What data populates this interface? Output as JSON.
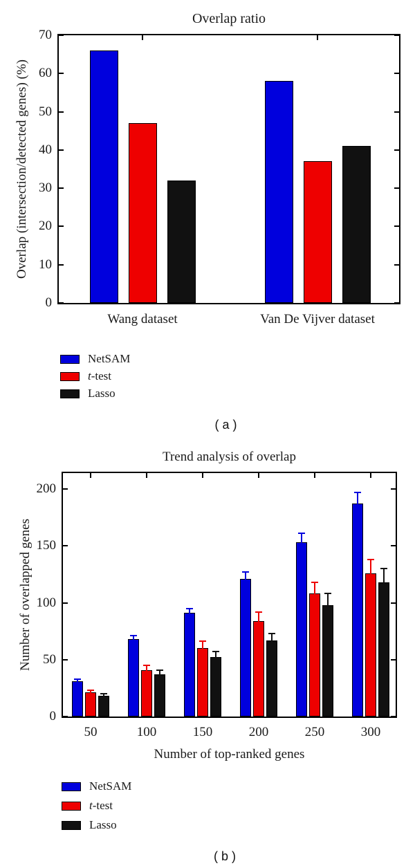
{
  "page": {
    "background": "#ffffff",
    "frame_color": "#000000",
    "text_color": "#1a1a1a"
  },
  "captions": {
    "a": "( a )",
    "b": "( b )"
  },
  "chart_data": [
    {
      "type": "bar",
      "panel": "a",
      "title": "Overlap ratio",
      "ylabel": "Overlap (intersection/detected genes) (%)",
      "xlabel": "",
      "categories": [
        "Wang dataset",
        "Van De Vijver dataset"
      ],
      "yticks": [
        0,
        10,
        20,
        30,
        40,
        50,
        60,
        70
      ],
      "ylim": [
        0,
        70
      ],
      "grid": false,
      "legend_position": "below-left",
      "bar_edge_color": "#000000",
      "series": [
        {
          "name": "NetSAM",
          "color": "#0000dd",
          "values": [
            66,
            58
          ]
        },
        {
          "name": "t-test",
          "italic_prefix_len": 1,
          "color": "#ee0000",
          "values": [
            47,
            37
          ]
        },
        {
          "name": "Lasso",
          "color": "#111111",
          "values": [
            32,
            41
          ]
        }
      ]
    },
    {
      "type": "bar",
      "panel": "b",
      "title": "Trend analysis of overlap",
      "ylabel": "Number of overlapped genes",
      "xlabel": "Number of top-ranked genes",
      "categories": [
        "50",
        "100",
        "150",
        "200",
        "250",
        "300"
      ],
      "yticks": [
        0,
        50,
        100,
        150,
        200
      ],
      "ylim": [
        0,
        214
      ],
      "grid": false,
      "legend_position": "below-left",
      "error_bars": true,
      "bar_edge_color": "#000000",
      "series": [
        {
          "name": "NetSAM",
          "color": "#0000dd",
          "values": [
            31,
            68,
            91,
            121,
            153,
            187
          ],
          "errors": [
            2,
            3,
            4,
            6,
            8,
            10
          ]
        },
        {
          "name": "t-test",
          "italic_prefix_len": 1,
          "color": "#ee0000",
          "values": [
            21,
            41,
            60,
            84,
            108,
            126
          ],
          "errors": [
            2,
            4,
            6,
            8,
            10,
            12
          ]
        },
        {
          "name": "Lasso",
          "color": "#111111",
          "values": [
            18,
            37,
            52,
            67,
            98,
            118
          ],
          "errors": [
            2,
            4,
            5,
            6,
            10,
            12
          ]
        }
      ]
    }
  ]
}
